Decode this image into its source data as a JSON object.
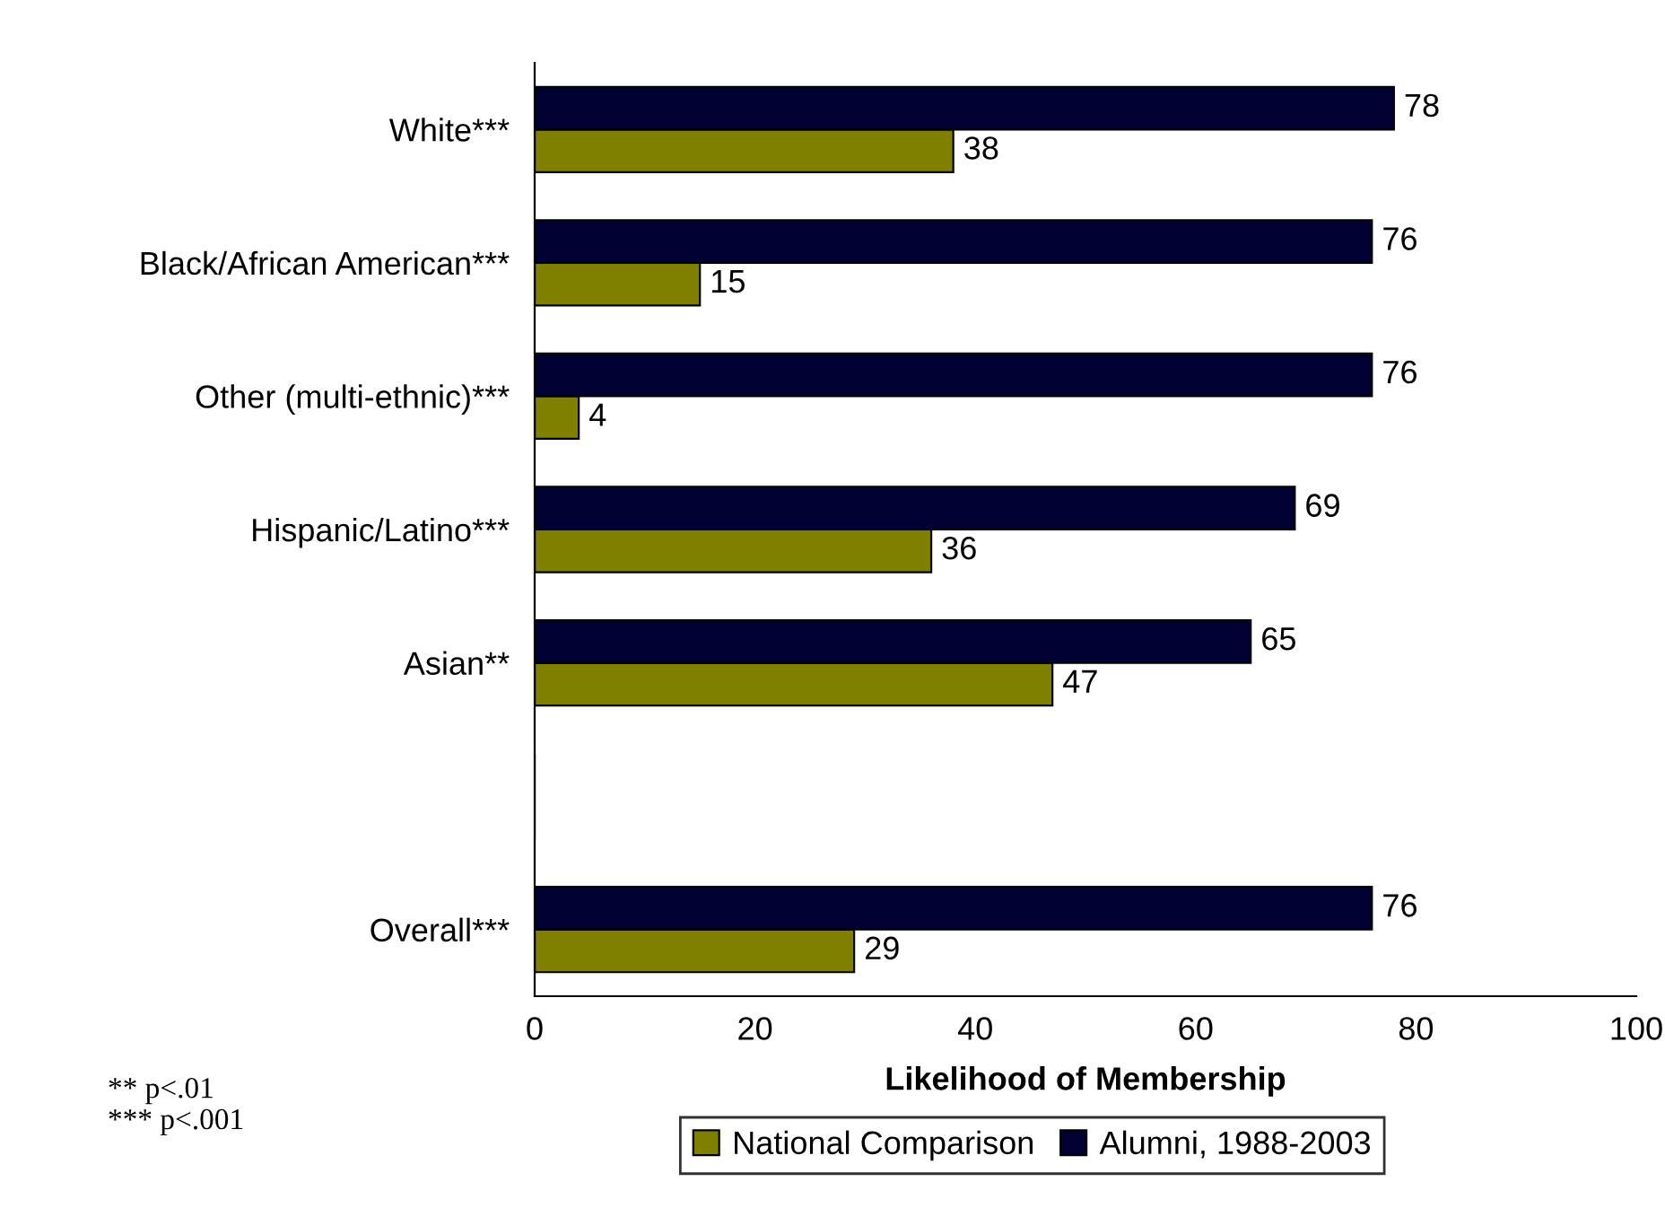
{
  "chart_data": {
    "type": "bar",
    "orientation": "horizontal",
    "categories": [
      "White***",
      "Black/African American***",
      "Other (multi-ethnic)***",
      "Hispanic/Latino***",
      "Asian**",
      null,
      "Overall***"
    ],
    "series": [
      {
        "name": "National Comparison",
        "color": "#808000",
        "values": [
          38,
          15,
          4,
          36,
          47,
          null,
          29
        ]
      },
      {
        "name": "Alumni, 1988-2003",
        "color": "#000033",
        "values": [
          78,
          76,
          76,
          69,
          65,
          null,
          76
        ]
      }
    ],
    "xlabel": "Likelihood of Membership",
    "xlim": [
      0,
      100
    ],
    "xticks": [
      0,
      20,
      40,
      60,
      80,
      100
    ],
    "data_labels": true,
    "grid": false,
    "legend": "bottom",
    "annotations": [
      "** p<.01\n*** p<.001"
    ]
  }
}
